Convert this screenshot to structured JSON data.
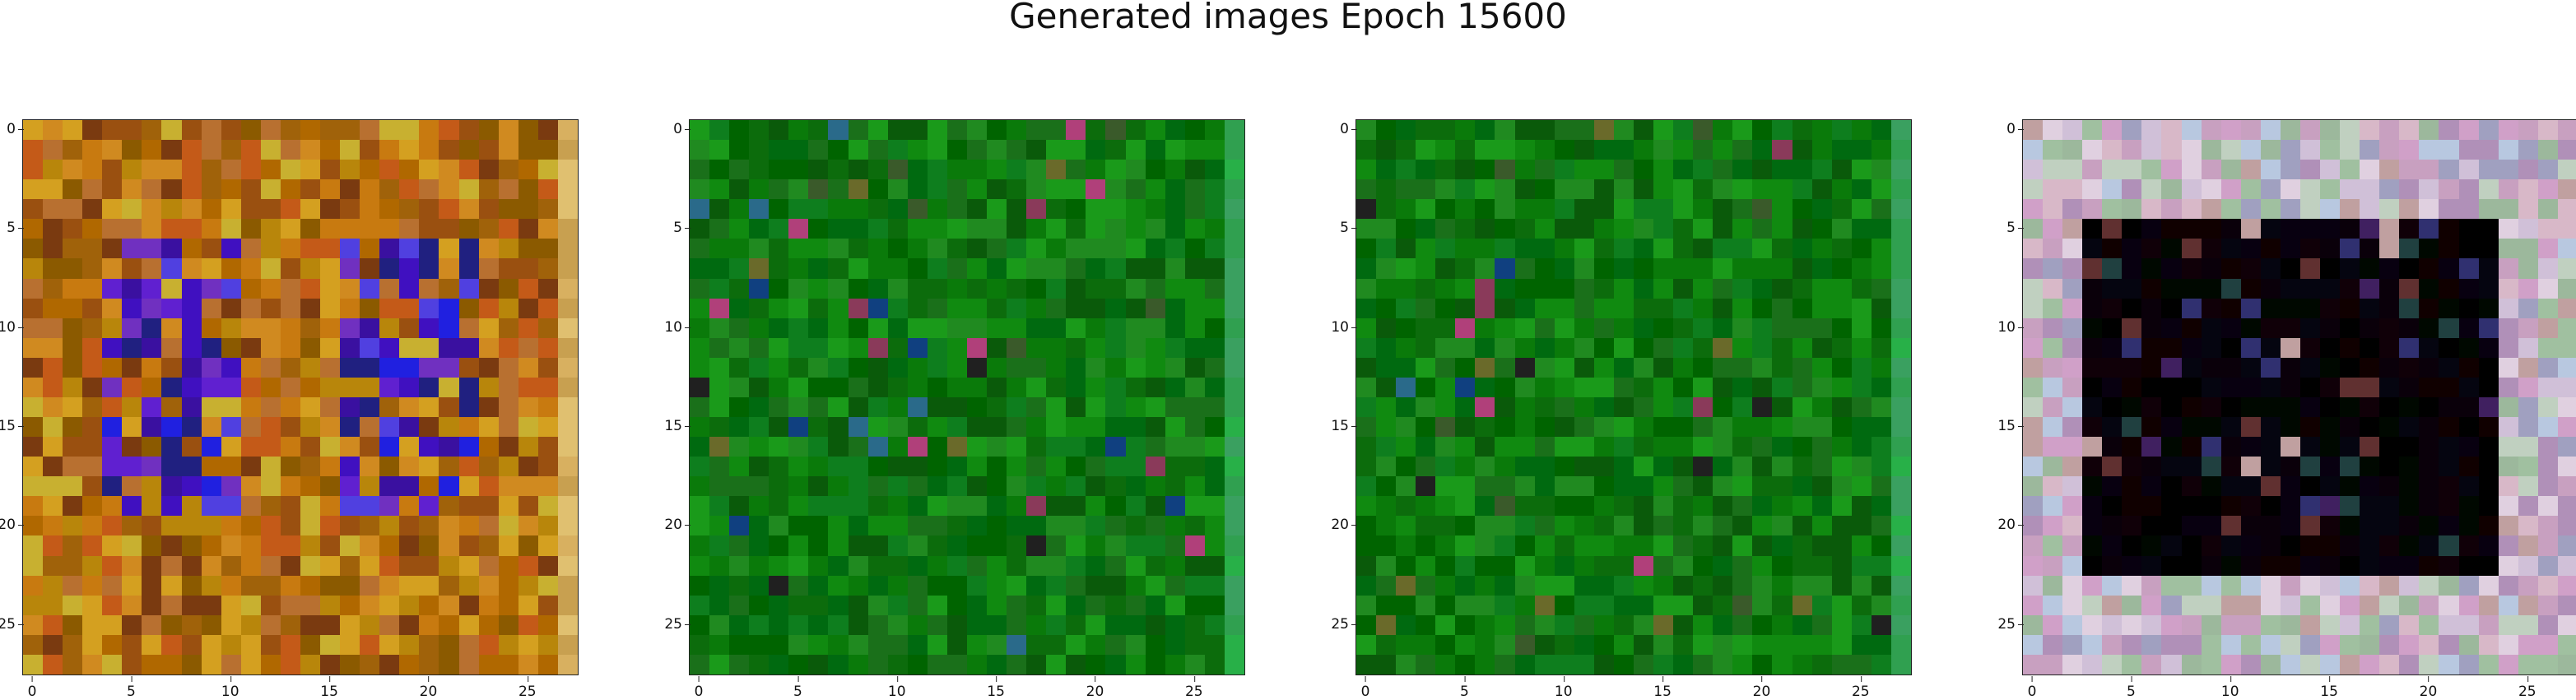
{
  "title": "Generated images Epoch 15600",
  "ticks": [
    "0",
    "5",
    "10",
    "15",
    "20",
    "25"
  ],
  "panels": [
    {
      "name": "generated-image-1",
      "theme": "orange"
    },
    {
      "name": "generated-image-2",
      "theme": "green"
    },
    {
      "name": "generated-image-3",
      "theme": "green2"
    },
    {
      "name": "generated-image-4",
      "theme": "pastel"
    }
  ]
}
